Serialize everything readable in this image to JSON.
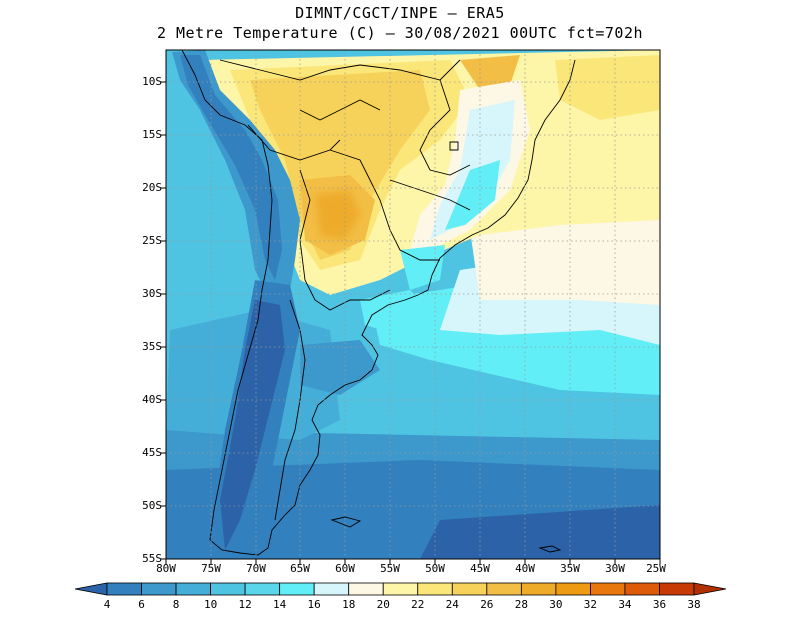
{
  "title": {
    "line1": "DIMNT/CGCT/INPE –  ERA5",
    "line2": "2 Metre Temperature (C) –  30/08/2021 00UTC fct=702h"
  },
  "map": {
    "region": "South America",
    "latitude_labels": [
      "10S",
      "15S",
      "20S",
      "25S",
      "30S",
      "35S",
      "40S",
      "45S",
      "50S",
      "55S"
    ],
    "longitude_labels": [
      "80W",
      "75W",
      "70W",
      "65W",
      "60W",
      "55W",
      "50W",
      "45W",
      "40W",
      "35W",
      "30W",
      "25W"
    ]
  },
  "colorbar": {
    "labels": [
      "4",
      "6",
      "8",
      "10",
      "12",
      "14",
      "16",
      "18",
      "20",
      "22",
      "24",
      "26",
      "28",
      "30",
      "32",
      "34",
      "36",
      "38"
    ],
    "colors": [
      "#2b62a8",
      "#3380be",
      "#3d98cc",
      "#45aed8",
      "#4fc3e2",
      "#5ad6ea",
      "#62eef6",
      "#d6f6fb",
      "#fdf7e6",
      "#fdf5a8",
      "#fbe67a",
      "#f7d25a",
      "#f2be45",
      "#eeab2a",
      "#ee9b14",
      "#e8780e",
      "#dd5a08",
      "#c83a04",
      "#b03000"
    ]
  }
}
